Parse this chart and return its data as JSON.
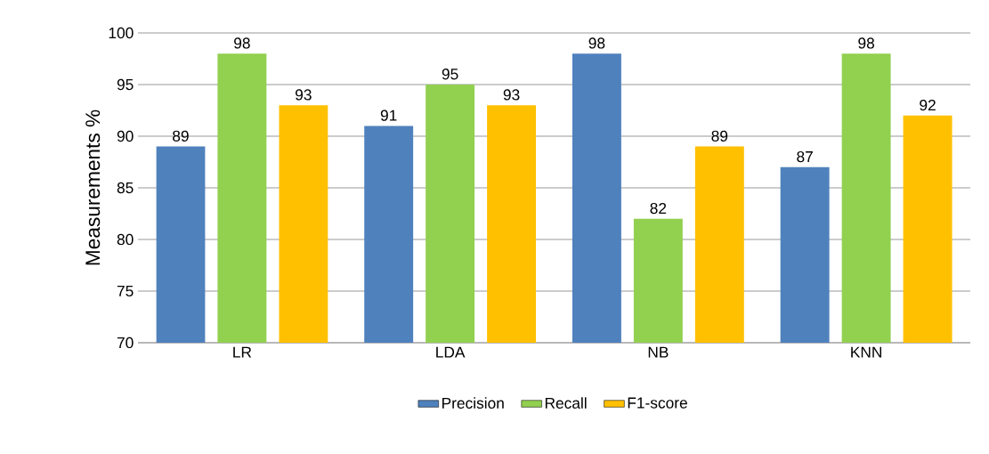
{
  "chart_data": {
    "type": "bar",
    "ylabel": "Measurements %",
    "categories": [
      "LR",
      "LDA",
      "NB",
      "KNN"
    ],
    "series": [
      {
        "name": "Precision",
        "color": "#4f81bd",
        "values": [
          89,
          91,
          98,
          87
        ]
      },
      {
        "name": "Recall",
        "color": "#92d050",
        "values": [
          98,
          95,
          82,
          98
        ]
      },
      {
        "name": "F1-score",
        "color": "#ffc000",
        "values": [
          93,
          93,
          89,
          92
        ]
      }
    ],
    "ylim": [
      70,
      100
    ],
    "yticks": [
      70,
      75,
      80,
      85,
      90,
      95,
      100
    ],
    "grid": "y",
    "legend": "bottom",
    "data_labels": true
  }
}
